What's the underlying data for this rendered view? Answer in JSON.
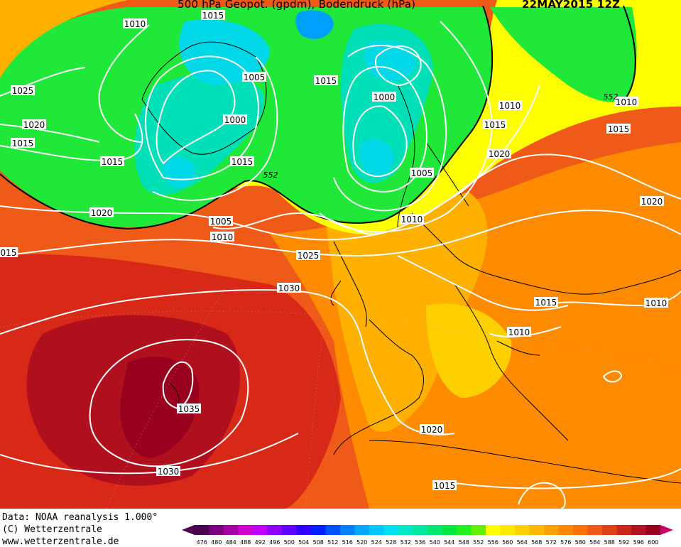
{
  "header": {
    "title": "500 hPa Geopot. (gpdm), Bodendruck (hPa)",
    "date": "22MAY2015 12Z"
  },
  "footer": {
    "data_source": "Data: NOAA reanalysis 1.000°",
    "copyright": "(C) Wetterzentrale",
    "url": "www.wetterzentrale.de"
  },
  "colors": {
    "low_deep": "#00a0ff",
    "low_cyan": "#00d8e8",
    "low_teal": "#00e0b8",
    "low_green": "#00e070",
    "mid_green": "#20e838",
    "yellow": "#ffff00",
    "yellow_orange": "#ffd000",
    "orange": "#ffb000",
    "dark_orange": "#ff8c00",
    "red_orange": "#f05a18",
    "red": "#d82818",
    "dark_red": "#b0101e",
    "deep_red": "#98001e",
    "isobar": "#ffffff",
    "coast": "#000000"
  },
  "isobar_labels": [
    "1015",
    "1010",
    "1025",
    "1020",
    "1015",
    "1015",
    "1005",
    "1000",
    "1015",
    "1005",
    "1010",
    "1020",
    "1015",
    "1000",
    "1005",
    "1010",
    "1010",
    "1015",
    "1020",
    "1010",
    "1020",
    "1015",
    "015",
    "1025",
    "1030",
    "1015",
    "1010",
    "1010",
    "1035",
    "1030",
    "1020",
    "1015"
  ],
  "height_labels": [
    "552",
    "552"
  ],
  "scale": {
    "values": [
      "476",
      "480",
      "484",
      "488",
      "492",
      "496",
      "500",
      "504",
      "508",
      "512",
      "516",
      "520",
      "524",
      "528",
      "532",
      "536",
      "540",
      "544",
      "548",
      "552",
      "556",
      "560",
      "564",
      "568",
      "572",
      "576",
      "580",
      "584",
      "588",
      "592",
      "596",
      "600"
    ],
    "colors": [
      "#4b0050",
      "#7a0080",
      "#a800a8",
      "#d000d0",
      "#c000ff",
      "#9000ff",
      "#6000ff",
      "#3000ff",
      "#0020ff",
      "#0050ff",
      "#0080ff",
      "#00a8ff",
      "#00c8ff",
      "#00e0f0",
      "#00e8c8",
      "#00e8a0",
      "#00e870",
      "#00e840",
      "#20f020",
      "#60f000",
      "#ffff00",
      "#ffe800",
      "#ffd000",
      "#ffb800",
      "#ffa000",
      "#ff8800",
      "#ff7000",
      "#f05818",
      "#e04018",
      "#c82818",
      "#b01420",
      "#980020"
    ]
  }
}
